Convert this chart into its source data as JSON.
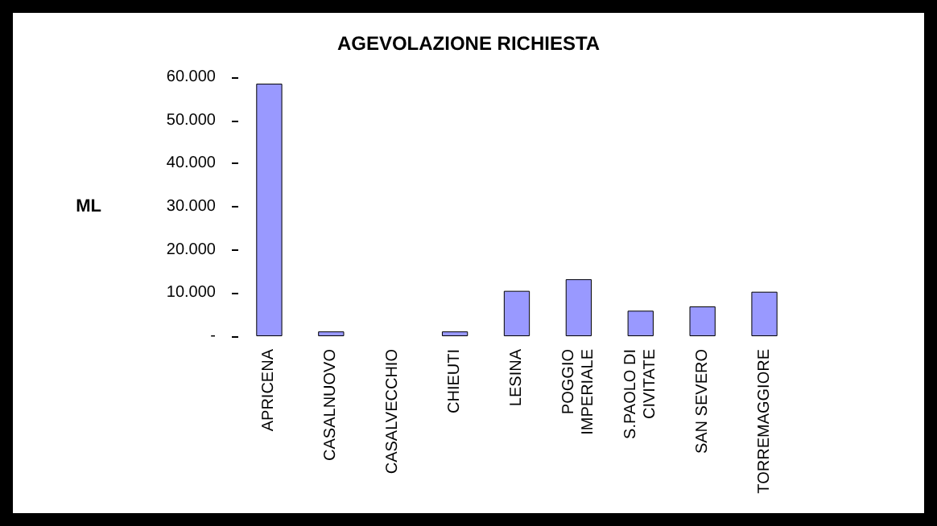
{
  "chart_data": {
    "type": "bar",
    "title": "AGEVOLAZIONE RICHIESTA",
    "ylabel": "ML",
    "categories": [
      "APRICENA",
      "CASALNUOVO",
      "CASALVECCHIO",
      "CHIEUTI",
      "LESINA",
      "POGGIO IMPERIALE",
      "S.PAOLO DI CIVITATE",
      "SAN SEVERO",
      "TORREMAGGIORE"
    ],
    "values": [
      58500,
      1100,
      0,
      1100,
      10500,
      13200,
      5900,
      6900,
      10300
    ],
    "color": "#9999ff",
    "ylim": [
      0,
      60000
    ],
    "yticks": [
      {
        "value": 0,
        "label": "-"
      },
      {
        "value": 10000,
        "label": "10.000"
      },
      {
        "value": 20000,
        "label": "20.000"
      },
      {
        "value": 30000,
        "label": "30.000"
      },
      {
        "value": 40000,
        "label": "40.000"
      },
      {
        "value": 50000,
        "label": "50.000"
      },
      {
        "value": 60000,
        "label": "60.000"
      }
    ],
    "grid": false
  }
}
